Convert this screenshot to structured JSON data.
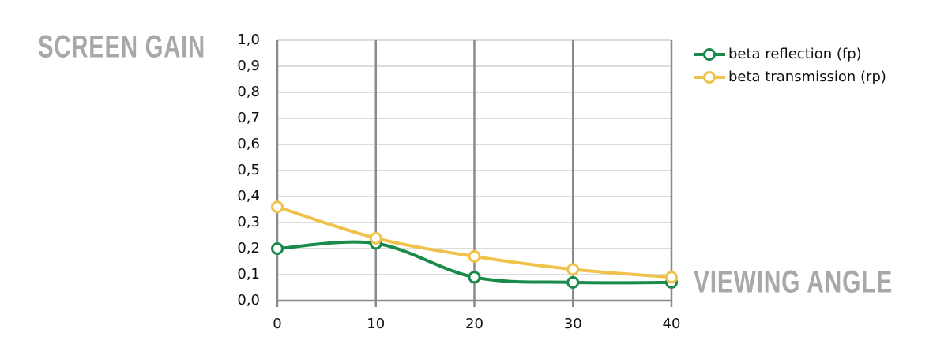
{
  "chart_data": {
    "type": "line",
    "y_label": "SCREEN GAIN",
    "x_label": "VIEWING ANGLE",
    "x": [
      0,
      10,
      20,
      30,
      40
    ],
    "series": [
      {
        "name": "beta reflection (fp)",
        "color": "#1a8a4a",
        "values": [
          0.2,
          0.22,
          0.09,
          0.07,
          0.07
        ]
      },
      {
        "name": "beta transmission (rp)",
        "color": "#f0c24b",
        "values": [
          0.36,
          0.24,
          0.17,
          0.12,
          0.09
        ]
      }
    ],
    "xlim": [
      0,
      40
    ],
    "xticks": [
      0,
      10,
      20,
      30,
      40
    ],
    "ylim": [
      0,
      1
    ],
    "yticks": [
      {
        "value": 0,
        "label": "0,0"
      },
      {
        "value": 0.1,
        "label": "0,1"
      },
      {
        "value": 0.2,
        "label": "0,2"
      },
      {
        "value": 0.3,
        "label": "0,3"
      },
      {
        "value": 0.4,
        "label": "0,4"
      },
      {
        "value": 0.5,
        "label": "0,5"
      },
      {
        "value": 0.6,
        "label": "0,6"
      },
      {
        "value": 0.7,
        "label": "0,7"
      },
      {
        "value": 0.8,
        "label": "0,8"
      },
      {
        "value": 0.9,
        "label": "0,9"
      },
      {
        "value": 1,
        "label": "1,0"
      }
    ],
    "grid": true,
    "smooth": true,
    "legend": "top-right"
  }
}
